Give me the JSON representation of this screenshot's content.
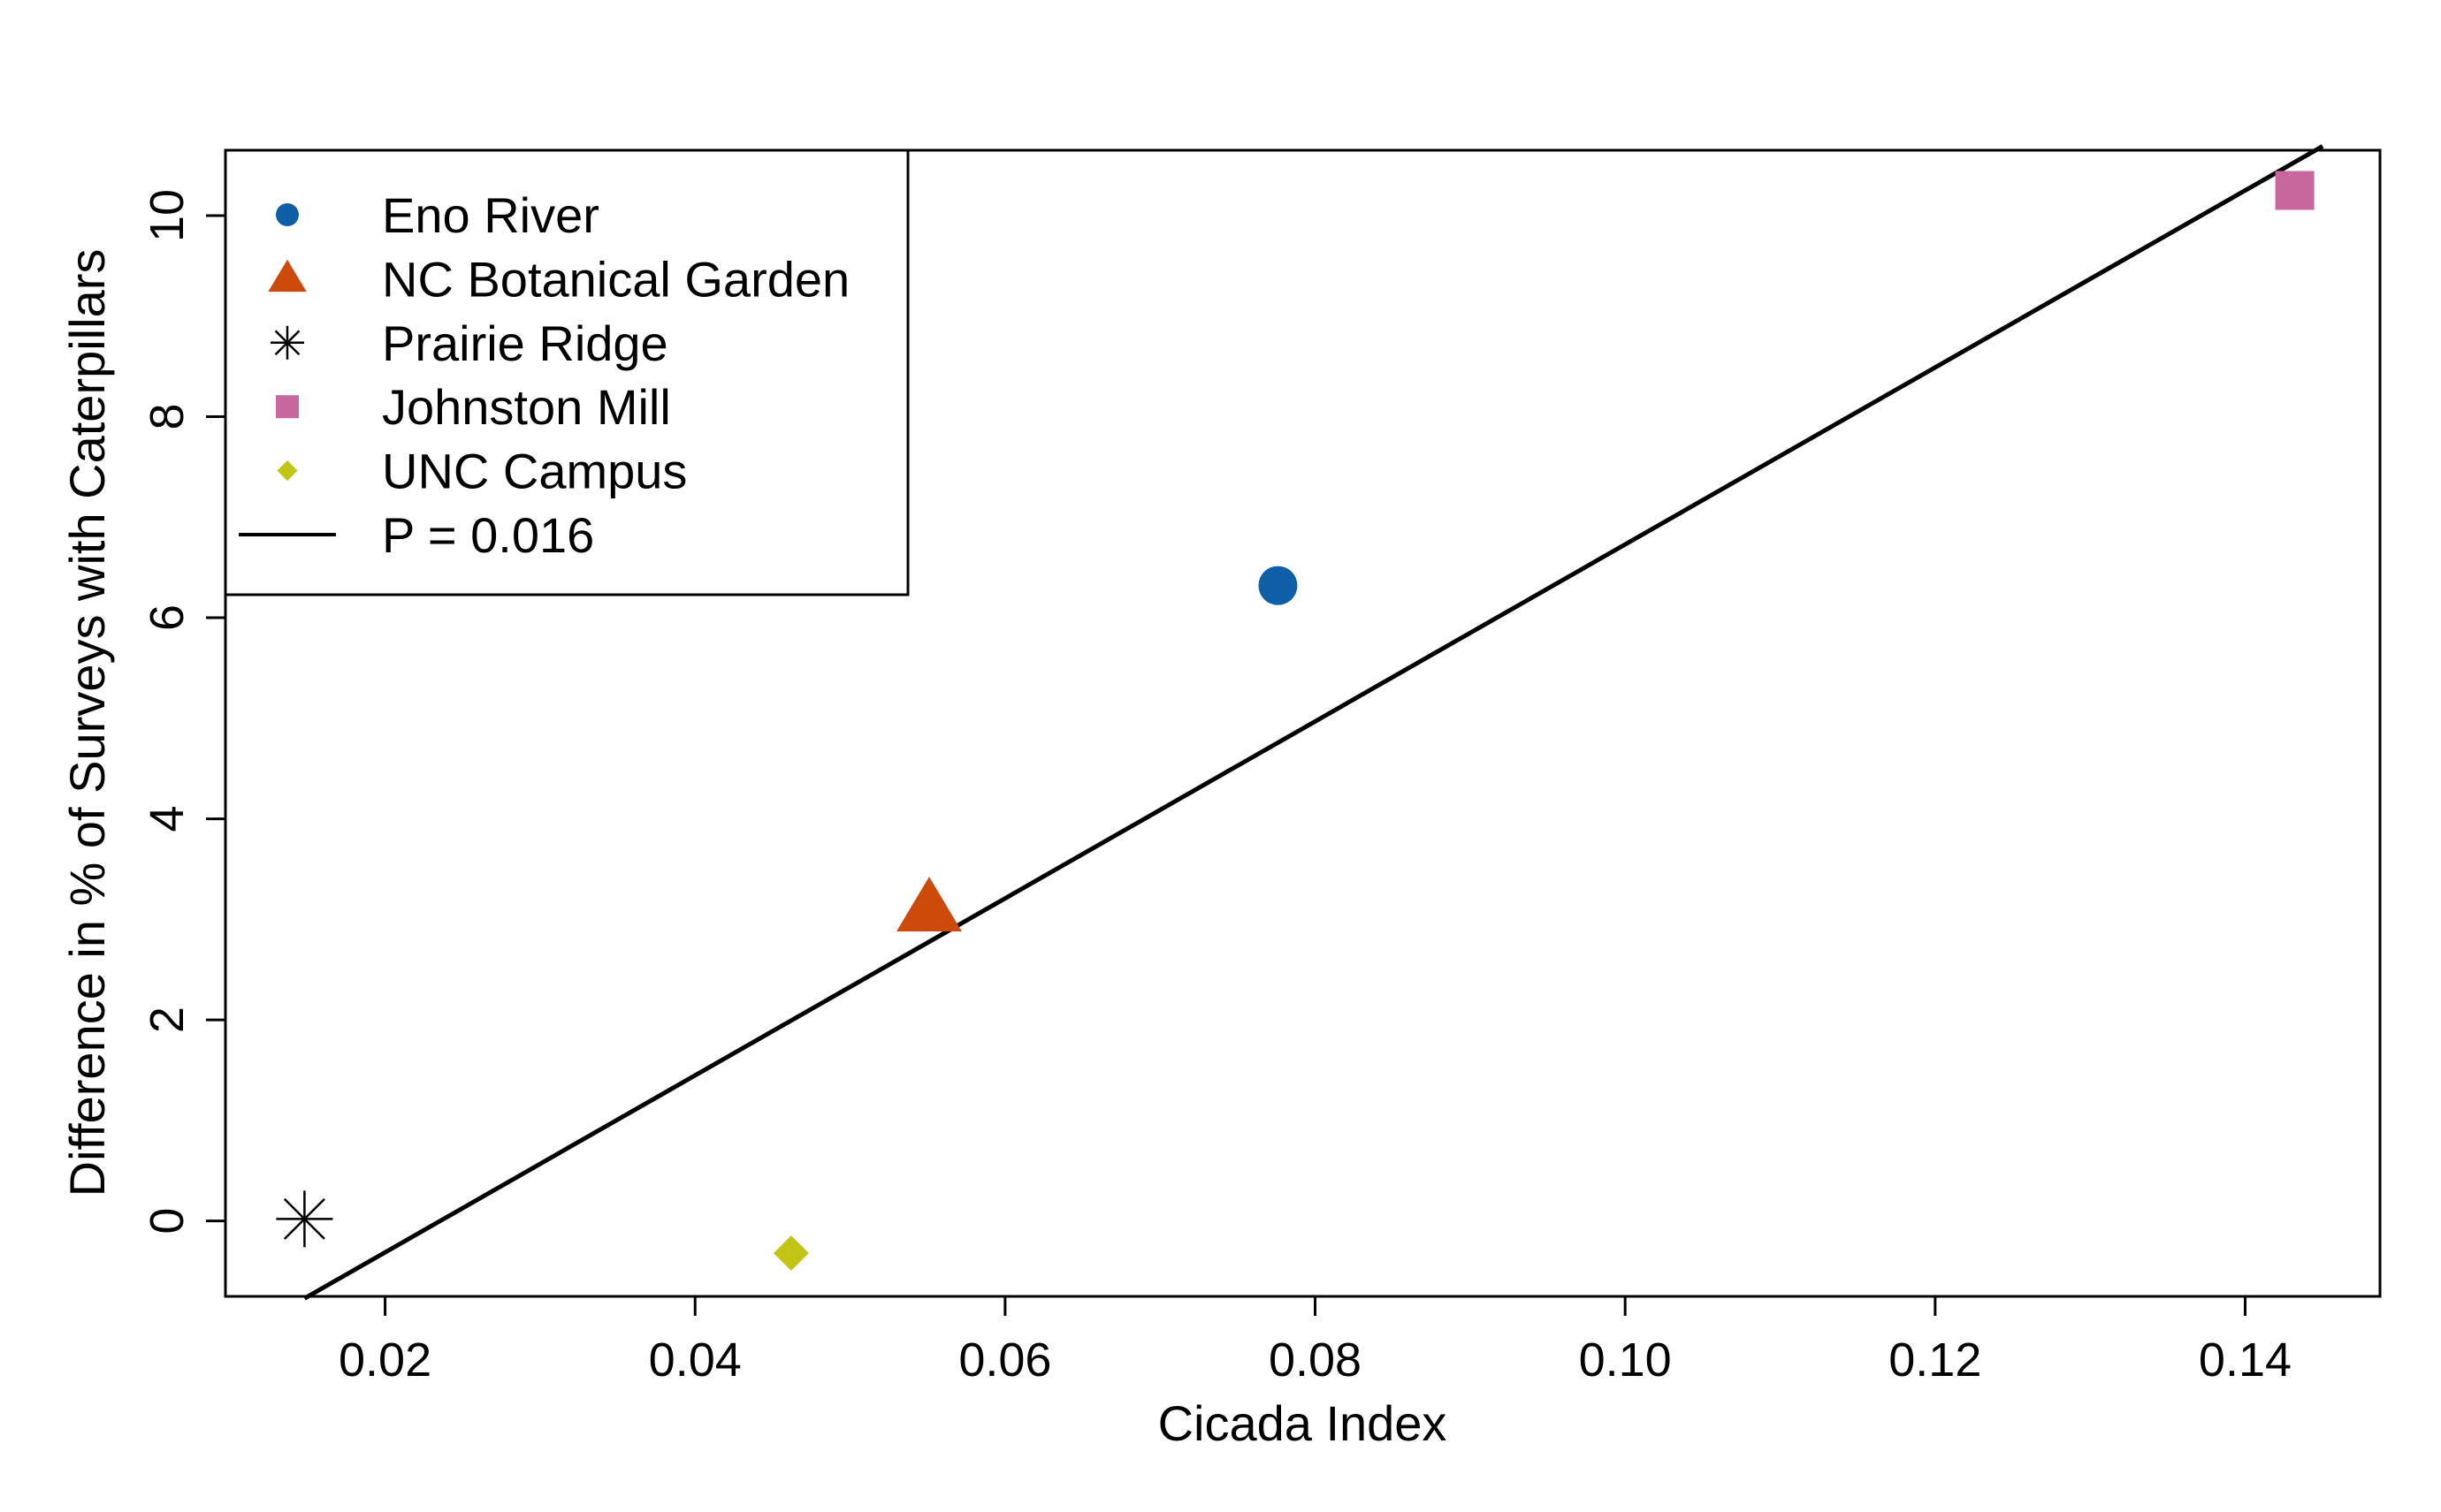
{
  "chart_data": {
    "type": "scatter",
    "title": "",
    "xlabel": "Cicada Index",
    "ylabel": "Difference in  % of Surveys with Caterpillars",
    "xlim": [
      0.0097,
      0.1487
    ],
    "ylim": [
      -0.75,
      10.65
    ],
    "xticks": [
      0.02,
      0.04,
      0.06,
      0.08,
      0.1,
      0.12,
      0.14
    ],
    "xtick_labels": [
      "0.02",
      "0.04",
      "0.06",
      "0.08",
      "0.10",
      "0.12",
      "0.14"
    ],
    "yticks": [
      0,
      2,
      4,
      6,
      8,
      10
    ],
    "ytick_labels": [
      "0",
      "2",
      "4",
      "6",
      "8",
      "10"
    ],
    "grid": false,
    "legend_position": "top-left",
    "series": [
      {
        "name": "Eno River",
        "marker": "circle",
        "color": "#0f5fa6",
        "x": [
          0.0776
        ],
        "y": [
          6.32
        ]
      },
      {
        "name": "NC Botanical Garden",
        "marker": "triangle",
        "color": "#cc4a0a",
        "x": [
          0.0551
        ],
        "y": [
          3.1
        ]
      },
      {
        "name": "Prairie Ridge",
        "marker": "asterisk",
        "color": "#000000",
        "x": [
          0.0148
        ],
        "y": [
          0.02
        ]
      },
      {
        "name": "Johnston Mill",
        "marker": "square",
        "color": "#c8679d",
        "x": [
          0.1432
        ],
        "y": [
          10.25
        ]
      },
      {
        "name": "UNC Campus",
        "marker": "diamond",
        "color": "#c2c416",
        "x": [
          0.0462
        ],
        "y": [
          -0.32
        ]
      }
    ],
    "fit_line": {
      "label": "P = 0.016",
      "color": "#000000",
      "x": [
        0.0148,
        0.145
      ],
      "y": [
        -0.77,
        10.69
      ]
    }
  }
}
